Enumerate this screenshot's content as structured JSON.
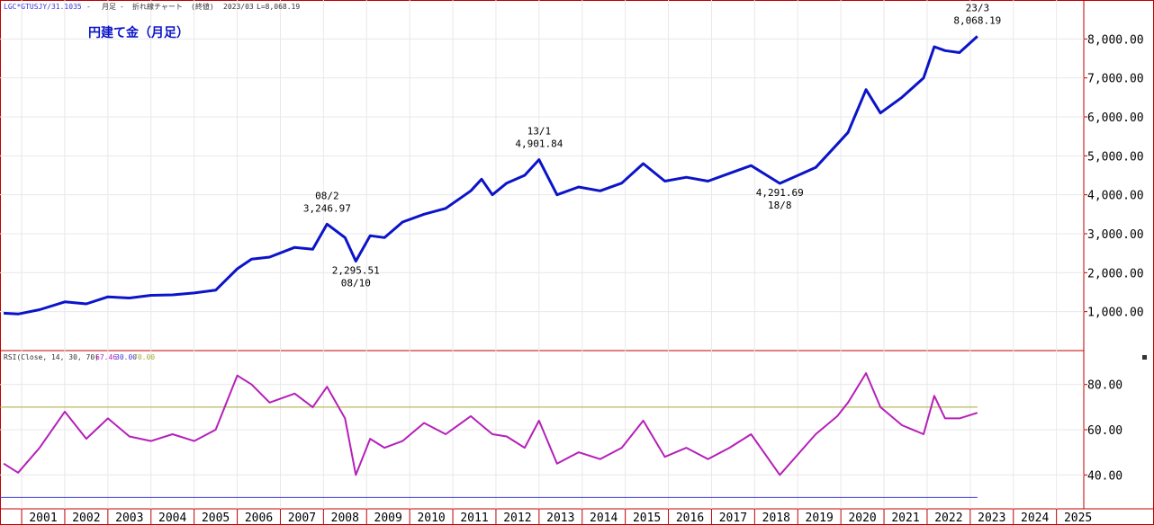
{
  "header": {
    "symbol": "LGC*GTUSJY/31.1035",
    "sep1": " - ",
    "period": "月足",
    "sep2": " - ",
    "chart_kind": "折れ線チャート",
    "price_kind": "(終値)",
    "last_date": "2023/03",
    "last_value": "L=8,068.19",
    "title": "円建て金（月足）"
  },
  "rsi_header": {
    "label": "RSI(Close, 14, 30, 70)",
    "value1": "67.46",
    "value2": "30.00",
    "value3": "70.00"
  },
  "colors": {
    "price_line": "#0b14c8",
    "rsi_line": "#b520b8",
    "overbought_line": "#a8a838",
    "oversold_line": "#3a3ad8",
    "frame": "#c00000",
    "grid": "#e8e8e8"
  },
  "chart_data": [
    {
      "type": "line",
      "title": "円建て金（月足）",
      "ylim": [
        0,
        9000
      ],
      "yticks": [
        "1,000.00",
        "2,000.00",
        "3,000.00",
        "4,000.00",
        "5,000.00",
        "6,000.00",
        "7,000.00",
        "8,000.00"
      ],
      "ytick_values": [
        1000,
        2000,
        3000,
        4000,
        5000,
        6000,
        7000,
        8000
      ],
      "xticks": [
        "2001",
        "2002",
        "2003",
        "2004",
        "2005",
        "2006",
        "2007",
        "2008",
        "2009",
        "2010",
        "2011",
        "2012",
        "2013",
        "2014",
        "2015",
        "2016",
        "2017",
        "2018",
        "2019",
        "2020",
        "2021",
        "2022",
        "2023",
        "2024",
        "2025"
      ],
      "grid": true,
      "series": [
        {
          "x": [
            "2000/08",
            "2000/12",
            "2001/06",
            "2002/01",
            "2002/07",
            "2003/01",
            "2003/07",
            "2004/01",
            "2004/07",
            "2005/01",
            "2005/07",
            "2006/01",
            "2006/05",
            "2006/10",
            "2007/05",
            "2007/10",
            "2008/02",
            "2008/07",
            "2008/10",
            "2009/02",
            "2009/06",
            "2009/11",
            "2010/05",
            "2010/11",
            "2011/06",
            "2011/09",
            "2011/12",
            "2012/04",
            "2012/09",
            "2013/01",
            "2013/06",
            "2013/12",
            "2014/06",
            "2014/12",
            "2015/06",
            "2015/12",
            "2016/06",
            "2016/12",
            "2017/06",
            "2017/12",
            "2018/08",
            "2019/06",
            "2019/12",
            "2020/03",
            "2020/08",
            "2020/12",
            "2021/06",
            "2021/12",
            "2022/03",
            "2022/06",
            "2022/10",
            "2023/03"
          ],
          "values": [
            960,
            940,
            1050,
            1250,
            1200,
            1380,
            1350,
            1420,
            1430,
            1480,
            1550,
            2100,
            2350,
            2400,
            2650,
            2600,
            3246.97,
            2900,
            2295.51,
            2950,
            2900,
            3300,
            3500,
            3650,
            4100,
            4400,
            4000,
            4300,
            4500,
            4901.84,
            4000,
            4200,
            4100,
            4300,
            4800,
            4350,
            4450,
            4350,
            4550,
            4750,
            4291.69,
            4700,
            5300,
            5600,
            6700,
            6100,
            6500,
            7000,
            7800,
            7700,
            7650,
            8068.19
          ]
        }
      ],
      "annotations": [
        {
          "date": "08/2",
          "value": "3,246.97"
        },
        {
          "date": "08/10",
          "value": "2,295.51"
        },
        {
          "date": "13/1",
          "value": "4,901.84"
        },
        {
          "date": "18/8",
          "value": "4,291.69"
        },
        {
          "date": "23/3",
          "value": "8,068.19"
        }
      ]
    },
    {
      "type": "line",
      "title": "RSI(Close, 14, 30, 70)",
      "ylim": [
        25,
        95
      ],
      "yticks": [
        "40.00",
        "60.00",
        "80.00"
      ],
      "ytick_values": [
        40,
        60,
        80
      ],
      "levels": [
        30,
        70
      ],
      "series": [
        {
          "x": [
            "2000/08",
            "2000/12",
            "2001/06",
            "2002/01",
            "2002/07",
            "2003/01",
            "2003/07",
            "2004/01",
            "2004/07",
            "2005/01",
            "2005/07",
            "2006/01",
            "2006/05",
            "2006/10",
            "2007/05",
            "2007/10",
            "2008/02",
            "2008/07",
            "2008/10",
            "2009/02",
            "2009/06",
            "2009/11",
            "2010/05",
            "2010/11",
            "2011/06",
            "2011/09",
            "2011/12",
            "2012/04",
            "2012/09",
            "2013/01",
            "2013/06",
            "2013/12",
            "2014/06",
            "2014/12",
            "2015/06",
            "2015/12",
            "2016/06",
            "2016/12",
            "2017/06",
            "2017/12",
            "2018/08",
            "2019/06",
            "2019/12",
            "2020/03",
            "2020/08",
            "2020/12",
            "2021/06",
            "2021/12",
            "2022/03",
            "2022/06",
            "2022/10",
            "2023/03"
          ],
          "values": [
            45,
            41,
            52,
            68,
            56,
            65,
            57,
            55,
            58,
            55,
            60,
            84,
            80,
            72,
            76,
            70,
            79,
            65,
            40,
            56,
            52,
            55,
            63,
            58,
            66,
            62,
            58,
            57,
            52,
            64,
            45,
            50,
            47,
            52,
            64,
            48,
            52,
            47,
            52,
            58,
            40,
            58,
            66,
            72,
            85,
            70,
            62,
            58,
            75,
            65,
            65,
            67.46
          ]
        }
      ]
    }
  ]
}
